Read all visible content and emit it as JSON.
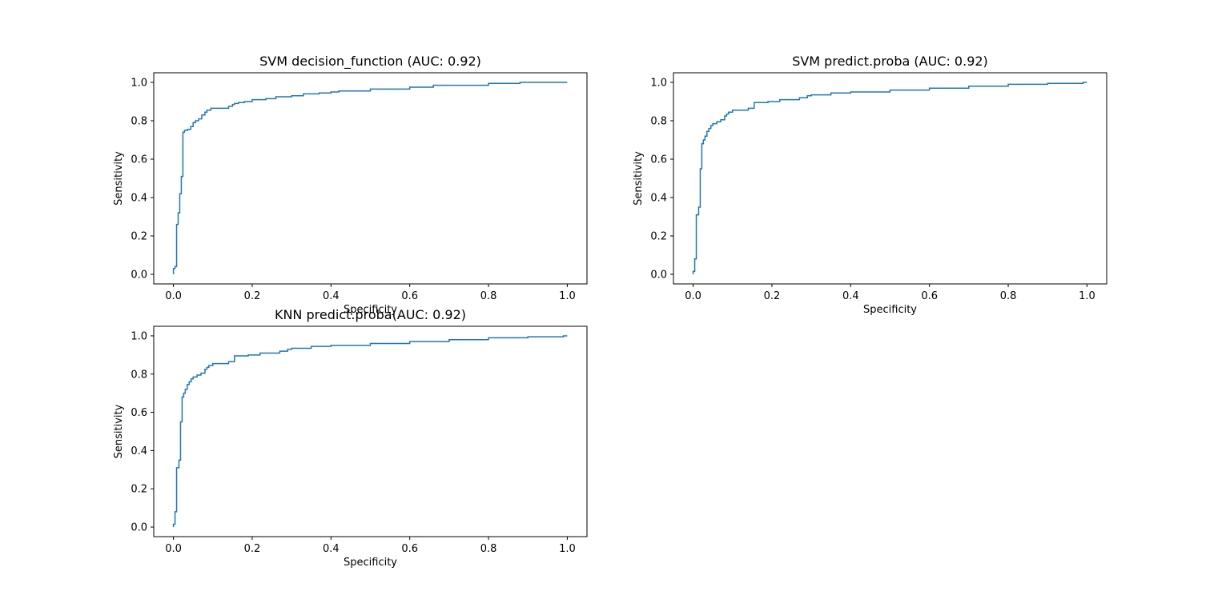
{
  "chart_data": [
    {
      "type": "line",
      "title": "SVM decision_function (AUC:  0.92)",
      "xlabel": "Specificity",
      "ylabel": "Sensitivity",
      "xlim": [
        -0.05,
        1.05
      ],
      "ylim": [
        -0.05,
        1.05
      ],
      "xticks": [
        0.0,
        0.2,
        0.4,
        0.6,
        0.8,
        1.0
      ],
      "yticks": [
        0.0,
        0.2,
        0.4,
        0.6,
        0.8,
        1.0
      ],
      "xtick_labels": [
        "0.0",
        "0.2",
        "0.4",
        "0.6",
        "0.8",
        "1.0"
      ],
      "ytick_labels": [
        "0.0",
        "0.2",
        "0.4",
        "0.6",
        "0.8",
        "1.0"
      ],
      "grid": false,
      "color": "#1f77b4",
      "drawstyle": "steps",
      "series": [
        {
          "x": [
            0.0,
            0.0,
            0.004,
            0.004,
            0.008,
            0.008,
            0.012,
            0.012,
            0.016,
            0.016,
            0.02,
            0.02,
            0.024,
            0.024,
            0.028,
            0.028,
            0.036,
            0.036,
            0.044,
            0.044,
            0.05,
            0.05,
            0.056,
            0.056,
            0.064,
            0.064,
            0.072,
            0.072,
            0.08,
            0.08,
            0.085,
            0.085,
            0.095,
            0.095,
            0.14,
            0.14,
            0.15,
            0.15,
            0.155,
            0.155,
            0.165,
            0.165,
            0.18,
            0.18,
            0.2,
            0.2,
            0.235,
            0.235,
            0.26,
            0.26,
            0.3,
            0.3,
            0.33,
            0.33,
            0.37,
            0.37,
            0.4,
            0.4,
            0.42,
            0.42,
            0.5,
            0.5,
            0.6,
            0.6,
            0.66,
            0.66,
            0.8,
            0.8,
            0.88,
            0.88,
            1.0
          ],
          "y": [
            0.0,
            0.03,
            0.03,
            0.04,
            0.04,
            0.26,
            0.26,
            0.32,
            0.32,
            0.42,
            0.42,
            0.51,
            0.51,
            0.74,
            0.74,
            0.75,
            0.75,
            0.755,
            0.755,
            0.77,
            0.77,
            0.79,
            0.79,
            0.8,
            0.8,
            0.81,
            0.81,
            0.83,
            0.83,
            0.845,
            0.845,
            0.855,
            0.855,
            0.865,
            0.865,
            0.875,
            0.875,
            0.885,
            0.885,
            0.89,
            0.89,
            0.895,
            0.895,
            0.9,
            0.9,
            0.91,
            0.91,
            0.915,
            0.915,
            0.925,
            0.925,
            0.93,
            0.93,
            0.94,
            0.94,
            0.945,
            0.945,
            0.95,
            0.95,
            0.955,
            0.955,
            0.965,
            0.965,
            0.975,
            0.975,
            0.985,
            0.985,
            0.995,
            0.995,
            1.0,
            1.0
          ]
        }
      ]
    },
    {
      "type": "line",
      "title": "SVM predict.proba (AUC:  0.92)",
      "xlabel": "Specificity",
      "ylabel": "Sensitivity",
      "xlim": [
        -0.05,
        1.05
      ],
      "ylim": [
        -0.05,
        1.05
      ],
      "xticks": [
        0.0,
        0.2,
        0.4,
        0.6,
        0.8,
        1.0
      ],
      "yticks": [
        0.0,
        0.2,
        0.4,
        0.6,
        0.8,
        1.0
      ],
      "xtick_labels": [
        "0.0",
        "0.2",
        "0.4",
        "0.6",
        "0.8",
        "1.0"
      ],
      "ytick_labels": [
        "0.0",
        "0.2",
        "0.4",
        "0.6",
        "0.8",
        "1.0"
      ],
      "grid": false,
      "color": "#1f77b4",
      "drawstyle": "steps",
      "series": [
        {
          "x": [
            0.0,
            0.0,
            0.004,
            0.004,
            0.008,
            0.008,
            0.014,
            0.014,
            0.018,
            0.018,
            0.022,
            0.022,
            0.026,
            0.026,
            0.03,
            0.03,
            0.035,
            0.035,
            0.04,
            0.04,
            0.045,
            0.045,
            0.05,
            0.05,
            0.06,
            0.06,
            0.07,
            0.07,
            0.08,
            0.08,
            0.085,
            0.085,
            0.09,
            0.09,
            0.1,
            0.1,
            0.14,
            0.14,
            0.155,
            0.155,
            0.19,
            0.19,
            0.22,
            0.22,
            0.27,
            0.27,
            0.29,
            0.29,
            0.3,
            0.3,
            0.35,
            0.35,
            0.4,
            0.4,
            0.5,
            0.5,
            0.6,
            0.6,
            0.7,
            0.7,
            0.8,
            0.8,
            0.9,
            0.9,
            0.99,
            0.99,
            1.0
          ],
          "y": [
            0.0,
            0.015,
            0.015,
            0.08,
            0.08,
            0.31,
            0.31,
            0.35,
            0.35,
            0.55,
            0.55,
            0.68,
            0.68,
            0.7,
            0.7,
            0.72,
            0.72,
            0.745,
            0.745,
            0.76,
            0.76,
            0.775,
            0.775,
            0.785,
            0.785,
            0.795,
            0.795,
            0.805,
            0.805,
            0.825,
            0.825,
            0.835,
            0.835,
            0.845,
            0.845,
            0.855,
            0.855,
            0.865,
            0.865,
            0.895,
            0.895,
            0.9,
            0.9,
            0.91,
            0.91,
            0.92,
            0.92,
            0.93,
            0.93,
            0.935,
            0.935,
            0.945,
            0.945,
            0.95,
            0.95,
            0.96,
            0.96,
            0.97,
            0.97,
            0.98,
            0.98,
            0.99,
            0.99,
            0.995,
            0.995,
            1.0,
            1.0
          ]
        }
      ]
    },
    {
      "type": "line",
      "title": "KNN predict.proba(AUC:  0.92)",
      "xlabel": "Specificity",
      "ylabel": "Sensitivity",
      "xlim": [
        -0.05,
        1.05
      ],
      "ylim": [
        -0.05,
        1.05
      ],
      "xticks": [
        0.0,
        0.2,
        0.4,
        0.6,
        0.8,
        1.0
      ],
      "yticks": [
        0.0,
        0.2,
        0.4,
        0.6,
        0.8,
        1.0
      ],
      "xtick_labels": [
        "0.0",
        "0.2",
        "0.4",
        "0.6",
        "0.8",
        "1.0"
      ],
      "ytick_labels": [
        "0.0",
        "0.2",
        "0.4",
        "0.6",
        "0.8",
        "1.0"
      ],
      "grid": false,
      "color": "#1f77b4",
      "drawstyle": "steps",
      "series": [
        {
          "x": [
            0.0,
            0.0,
            0.004,
            0.004,
            0.008,
            0.008,
            0.014,
            0.014,
            0.018,
            0.018,
            0.022,
            0.022,
            0.026,
            0.026,
            0.03,
            0.03,
            0.035,
            0.035,
            0.04,
            0.04,
            0.045,
            0.045,
            0.05,
            0.05,
            0.06,
            0.06,
            0.07,
            0.07,
            0.08,
            0.08,
            0.085,
            0.085,
            0.09,
            0.09,
            0.1,
            0.1,
            0.14,
            0.14,
            0.155,
            0.155,
            0.19,
            0.19,
            0.22,
            0.22,
            0.27,
            0.27,
            0.29,
            0.29,
            0.3,
            0.3,
            0.35,
            0.35,
            0.4,
            0.4,
            0.5,
            0.5,
            0.6,
            0.6,
            0.7,
            0.7,
            0.8,
            0.8,
            0.9,
            0.9,
            0.99,
            0.99,
            1.0
          ],
          "y": [
            0.0,
            0.015,
            0.015,
            0.08,
            0.08,
            0.31,
            0.31,
            0.35,
            0.35,
            0.55,
            0.55,
            0.68,
            0.68,
            0.7,
            0.7,
            0.72,
            0.72,
            0.745,
            0.745,
            0.76,
            0.76,
            0.775,
            0.775,
            0.785,
            0.785,
            0.795,
            0.795,
            0.805,
            0.805,
            0.825,
            0.825,
            0.835,
            0.835,
            0.845,
            0.845,
            0.855,
            0.855,
            0.865,
            0.865,
            0.895,
            0.895,
            0.9,
            0.9,
            0.91,
            0.91,
            0.92,
            0.92,
            0.93,
            0.93,
            0.935,
            0.935,
            0.945,
            0.945,
            0.95,
            0.95,
            0.96,
            0.96,
            0.97,
            0.97,
            0.98,
            0.98,
            0.99,
            0.99,
            0.995,
            0.995,
            1.0,
            1.0
          ]
        }
      ]
    }
  ]
}
